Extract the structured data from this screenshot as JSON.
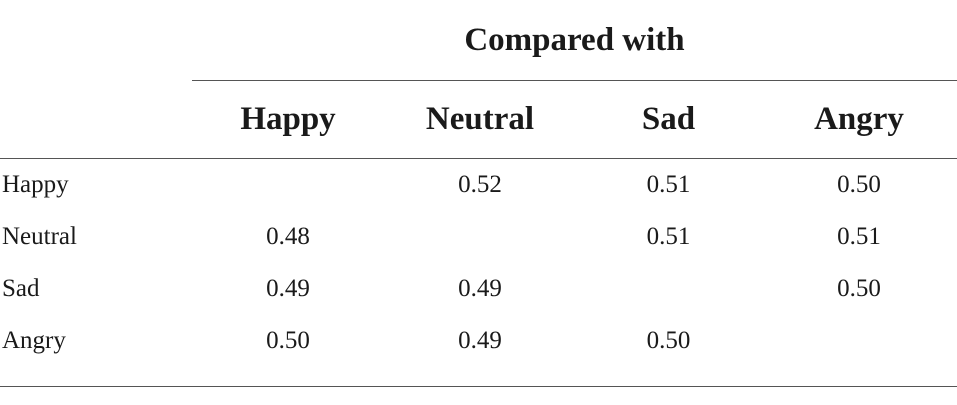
{
  "table": {
    "group_header": "Compared with",
    "columns": [
      "Happy",
      "Neutral",
      "Sad",
      "Angry"
    ],
    "rows": [
      {
        "label": "Happy",
        "values": [
          "",
          "0.52",
          "0.51",
          "0.50"
        ]
      },
      {
        "label": "Neutral",
        "values": [
          "0.48",
          "",
          "0.51",
          "0.51"
        ]
      },
      {
        "label": "Sad",
        "values": [
          "0.49",
          "0.49",
          "",
          "0.50"
        ]
      },
      {
        "label": "Angry",
        "values": [
          "0.50",
          "0.49",
          "0.50",
          ""
        ]
      }
    ]
  }
}
